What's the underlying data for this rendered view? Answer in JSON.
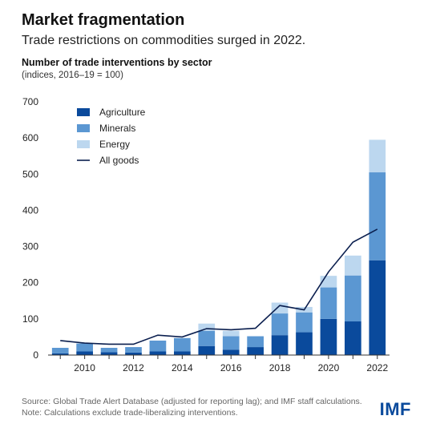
{
  "header": {
    "title": "Market fragmentation",
    "subtitle": "Trade restrictions on commodities surged in 2022."
  },
  "chart_heading": "Number of trade interventions by sector",
  "chart_note": "(indices, 2016–19 = 100)",
  "chart_data": {
    "type": "bar",
    "stacked": true,
    "x": [
      2009,
      2010,
      2011,
      2012,
      2013,
      2014,
      2015,
      2016,
      2017,
      2018,
      2019,
      2020,
      2021,
      2022
    ],
    "x_tick_labels": [
      "2010",
      "2012",
      "2014",
      "2016",
      "2018",
      "2020",
      "2022"
    ],
    "x_tick_values": [
      2010,
      2012,
      2014,
      2016,
      2018,
      2020,
      2022
    ],
    "ylim": [
      0,
      700
    ],
    "y_ticks": [
      0,
      100,
      200,
      300,
      400,
      500,
      600,
      700
    ],
    "series": [
      {
        "name": "Agriculture",
        "color": "#0a4a9c",
        "values": [
          5,
          10,
          8,
          7,
          10,
          10,
          25,
          15,
          22,
          55,
          63,
          100,
          93,
          262
        ]
      },
      {
        "name": "Minerals",
        "color": "#5b97d2",
        "values": [
          15,
          22,
          12,
          15,
          30,
          37,
          42,
          37,
          30,
          60,
          55,
          87,
          127,
          243
        ]
      },
      {
        "name": "Energy",
        "color": "#bcd7ef",
        "values": [
          0,
          0,
          0,
          0,
          0,
          0,
          20,
          15,
          0,
          30,
          15,
          32,
          55,
          90
        ]
      }
    ],
    "line_series": {
      "name": "All goods",
      "color": "#0b1f4f",
      "values": [
        40,
        33,
        30,
        30,
        55,
        50,
        73,
        70,
        74,
        137,
        125,
        230,
        312,
        348
      ]
    },
    "legend_position": "top-left",
    "grid": false
  },
  "footer": {
    "source": "Source: Global Trade Alert Database (adjusted for reporting lag); and IMF staff calculations.",
    "note": "Note: Calculations exclude trade-liberalizing interventions."
  },
  "logo_text": "IMF"
}
